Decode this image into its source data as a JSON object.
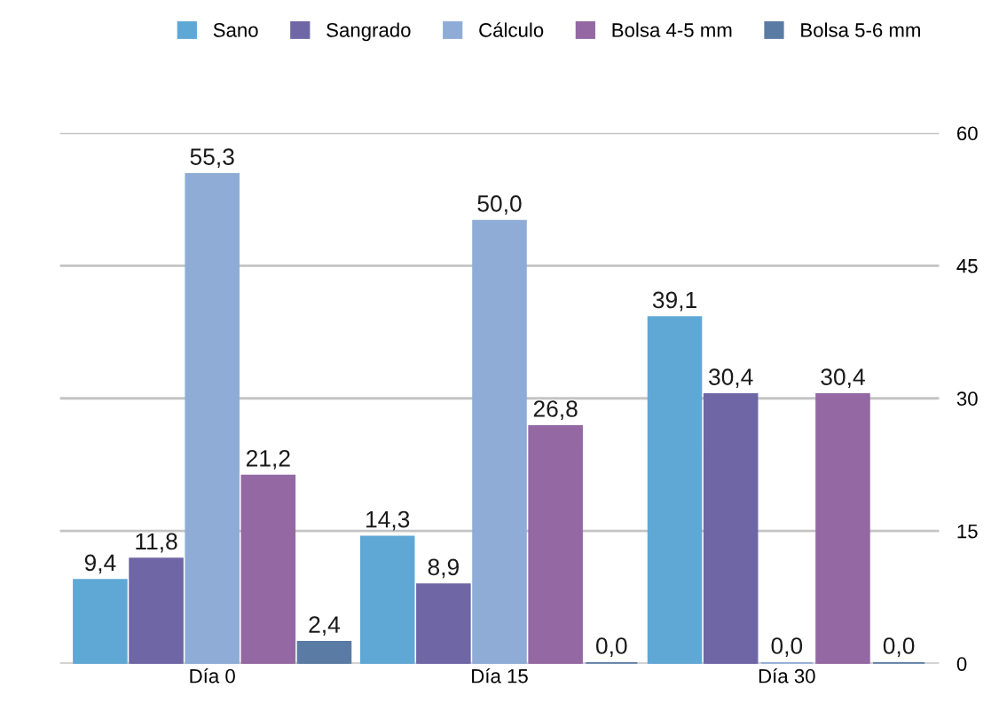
{
  "chart_data": {
    "type": "bar",
    "categories": [
      "Día 0",
      "Día 15",
      "Día 30"
    ],
    "series": [
      {
        "name": "Sano",
        "color": "#5fa8d6",
        "values": [
          9.4,
          14.3,
          39.1
        ],
        "value_labels": [
          "9,4",
          "14,3",
          "39,1"
        ]
      },
      {
        "name": "Sangrado",
        "color": "#6f66a6",
        "values": [
          11.8,
          8.9,
          30.4
        ],
        "value_labels": [
          "11,8",
          "8,9",
          "30,4"
        ]
      },
      {
        "name": "Cálculo",
        "color": "#8eacd6",
        "values": [
          55.3,
          50.0,
          0.0
        ],
        "value_labels": [
          "55,3",
          "50,0",
          "0,0"
        ]
      },
      {
        "name": "Bolsa 4-5 mm",
        "color": "#9468a2",
        "values": [
          21.2,
          26.8,
          30.4
        ],
        "value_labels": [
          "21,2",
          "26,8",
          "30,4"
        ]
      },
      {
        "name": "Bolsa 5-6 mm",
        "color": "#5a7ba3",
        "values": [
          2.4,
          0.0,
          0.0
        ],
        "value_labels": [
          "2,4",
          "0,0",
          "0,0"
        ]
      }
    ],
    "ylim": [
      0,
      60
    ],
    "yticks": [
      0,
      15,
      30,
      45,
      60
    ],
    "grid": "y",
    "legend": "top"
  }
}
